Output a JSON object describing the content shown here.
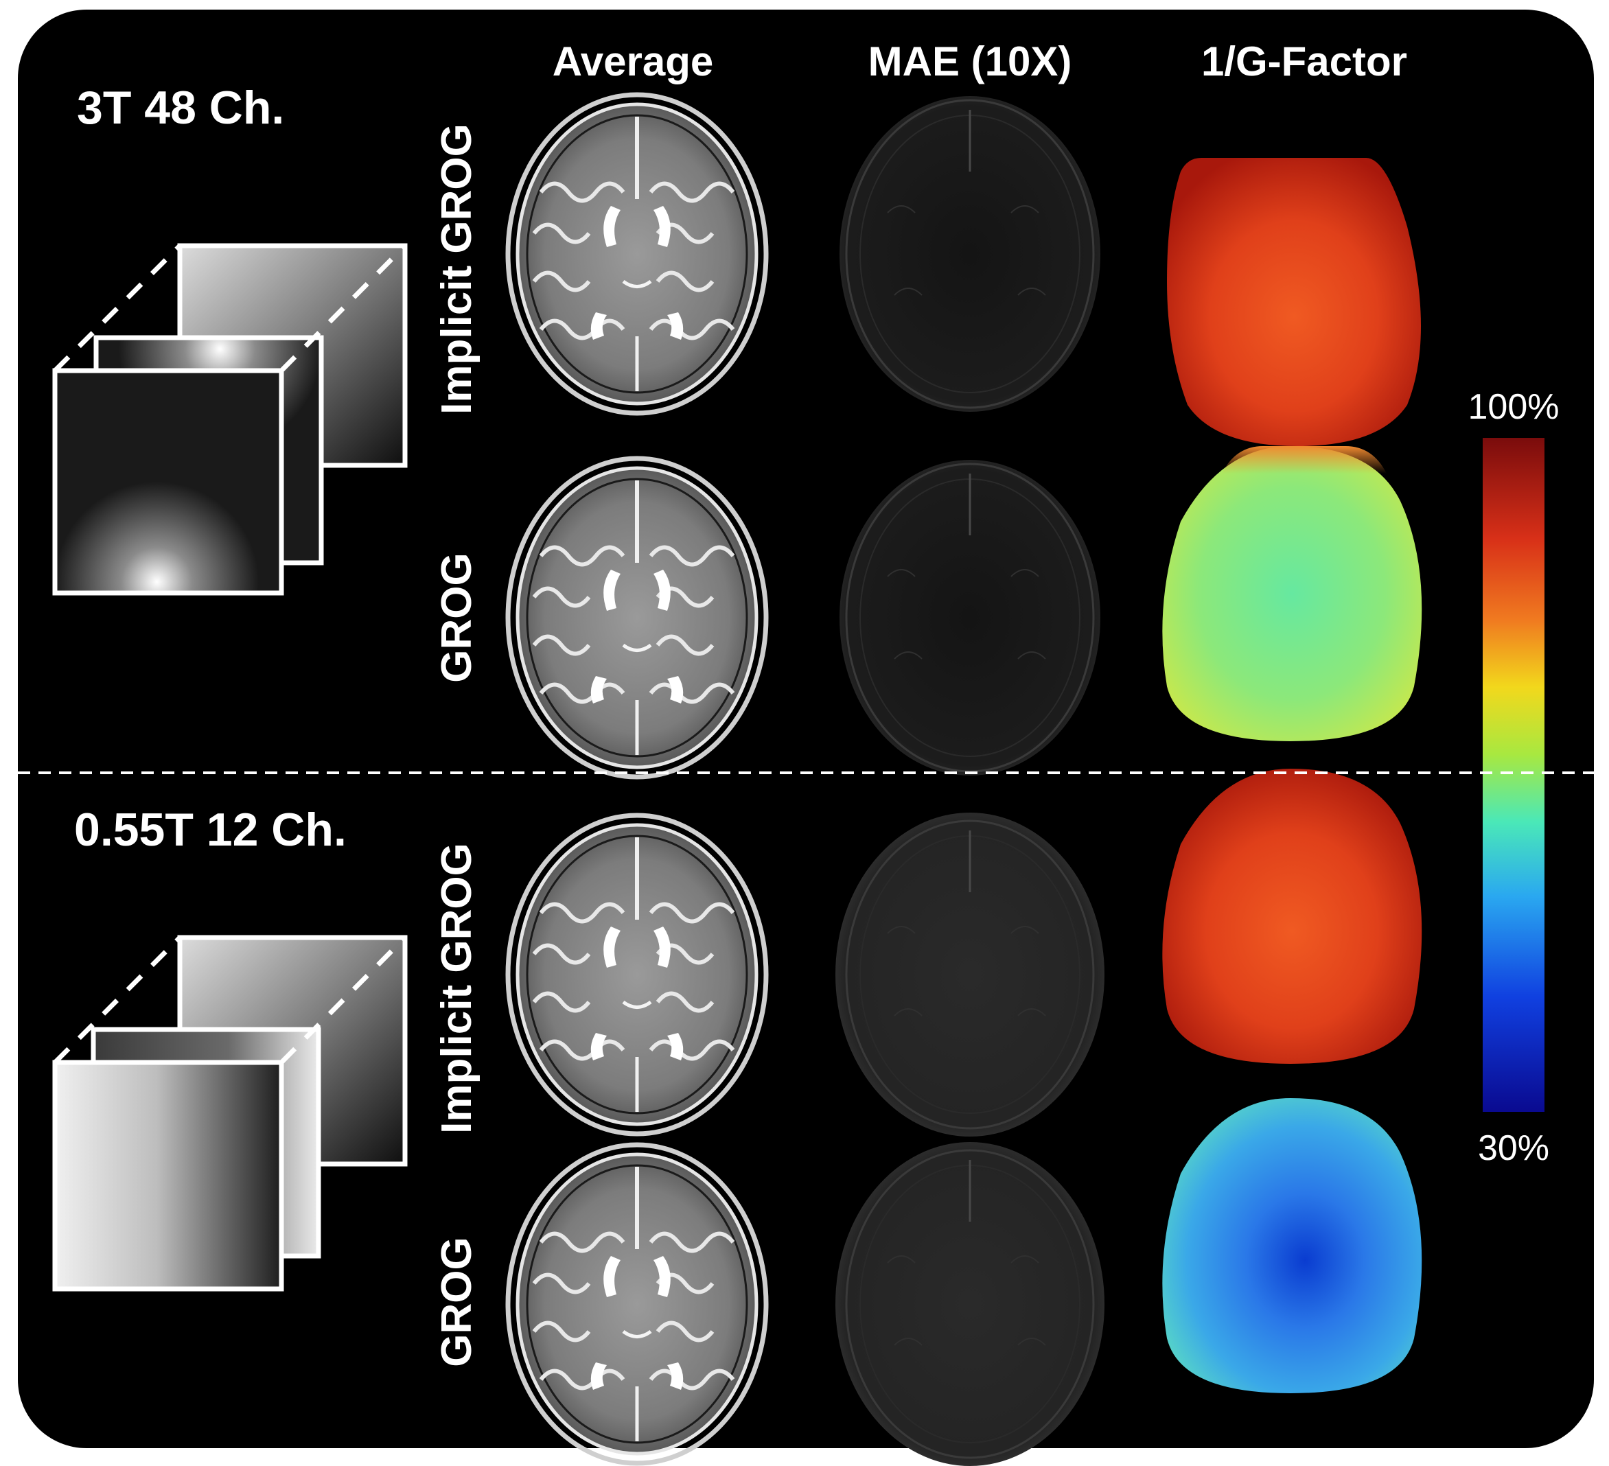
{
  "columns": {
    "average": "Average",
    "mae": "MAE (10X)",
    "gfactor": "1/G-Factor"
  },
  "sections": [
    {
      "title": "3T 48 Ch.",
      "rows": [
        {
          "label": "Implicit GROG",
          "gfactor_color": "#c8260e"
        },
        {
          "label": "GROG",
          "gfactor_color": "#a4e85a"
        }
      ]
    },
    {
      "title": "0.55T 12 Ch.",
      "rows": [
        {
          "label": "Implicit GROG",
          "gfactor_color": "#c8260e"
        },
        {
          "label": "GROG",
          "gfactor_color": "#3a9ef0"
        }
      ]
    }
  ],
  "colorbar": {
    "max_label": "100%",
    "min_label": "30%",
    "colors": [
      "#7a0c0c",
      "#d83018",
      "#f07a20",
      "#f2d81c",
      "#a8e840",
      "#4ae8b8",
      "#2aa8f0",
      "#1040e0",
      "#0a0a90"
    ]
  }
}
